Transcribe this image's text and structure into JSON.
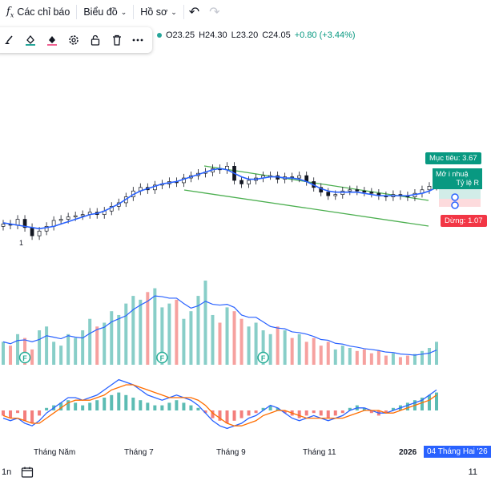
{
  "toolbar": {
    "indicators_icon": "fx-icon",
    "indicators_label": "Các chỉ báo",
    "chart_label": "Biểu đồ",
    "profile_label": "Hồ sơ"
  },
  "drawing_toolbar": {
    "tools": [
      "brush-icon",
      "fill-icon",
      "fill-alt-icon",
      "gear-icon",
      "lock-icon",
      "trash-icon",
      "more-icon"
    ]
  },
  "ohlc": {
    "open": "O23.25",
    "high": "H24.30",
    "low": "L23.20",
    "close": "C24.05",
    "change": "+0.80 (+3.44%)"
  },
  "position": {
    "target": "Mục tiêu: 3.67",
    "info_line1": "Mở",
    "info_line1b": "i nhuậ",
    "info_line2": "Tỷ lệ R",
    "stop": "Dừng: 1.07"
  },
  "markers": {
    "flag": "F",
    "left_marker": "1"
  },
  "time_axis": {
    "labels": [
      "Tháng Năm",
      "Tháng 7",
      "Tháng 9",
      "Tháng 11",
      "2026"
    ],
    "crosshair_date": "04 Tháng Hai '26"
  },
  "bottom": {
    "interval": "1n",
    "right_value": "11"
  },
  "colors": {
    "up": "#26a69a",
    "down": "#ef5350",
    "ma": "#2962ff",
    "channel": "#4caf50",
    "macd_signal": "#ff6d00"
  },
  "chart_data": {
    "type": "candlestick",
    "price_close_series": [
      20.2,
      20.1,
      20.6,
      19.9,
      19.2,
      19.6,
      20.0,
      20.5,
      20.6,
      20.8,
      20.9,
      21.0,
      21.2,
      21.0,
      21.3,
      21.7,
      22.0,
      22.5,
      23.0,
      23.3,
      23.1,
      23.5,
      23.6,
      23.8,
      23.7,
      24.1,
      24.3,
      24.5,
      24.6,
      24.9,
      24.8,
      25.1,
      23.9,
      23.6,
      23.9,
      24.1,
      24.3,
      24.3,
      24.0,
      24.2,
      24.1,
      24.3,
      23.8,
      23.3,
      22.9,
      22.6,
      22.7,
      23.0,
      23.1,
      23.0,
      22.9,
      22.8,
      22.6,
      22.5,
      22.7,
      22.6,
      22.5,
      22.8,
      23.1,
      23.4,
      24.05
    ],
    "volume_series": [
      30,
      25,
      40,
      35,
      20,
      45,
      50,
      30,
      25,
      40,
      35,
      45,
      60,
      50,
      55,
      70,
      65,
      80,
      90,
      85,
      95,
      100,
      75,
      80,
      85,
      60,
      70,
      90,
      110,
      65,
      55,
      75,
      70,
      60,
      50,
      55,
      45,
      40,
      50,
      45,
      35,
      40,
      30,
      35,
      25,
      30,
      20,
      25,
      22,
      18,
      20,
      15,
      18,
      12,
      15,
      10,
      12,
      14,
      18,
      22,
      30
    ],
    "ma_series": [
      20.3,
      20.2,
      20.1,
      20.0,
      19.9,
      19.8,
      19.9,
      20.0,
      20.2,
      20.4,
      20.6,
      20.8,
      21.0,
      21.1,
      21.3,
      21.6,
      21.9,
      22.3,
      22.7,
      23.0,
      23.2,
      23.4,
      23.6,
      23.7,
      23.8,
      24.0,
      24.2,
      24.4,
      24.6,
      24.8,
      24.9,
      24.8,
      24.5,
      24.2,
      24.0,
      24.0,
      24.1,
      24.2,
      24.2,
      24.1,
      24.1,
      24.0,
      23.8,
      23.5,
      23.2,
      23.0,
      22.9,
      22.9,
      22.9,
      22.9,
      22.8,
      22.7,
      22.6,
      22.6,
      22.6,
      22.6,
      22.6,
      22.7,
      22.8,
      23.0,
      23.3
    ],
    "macd_hist": [
      -2,
      -3,
      -1,
      -4,
      -5,
      -2,
      1,
      2,
      3,
      4,
      3,
      2,
      3,
      4,
      5,
      6,
      7,
      6,
      5,
      4,
      3,
      2,
      2,
      3,
      4,
      3,
      2,
      1,
      -1,
      -3,
      -4,
      -5,
      -4,
      -3,
      -2,
      -1,
      1,
      2,
      1,
      -1,
      -2,
      -3,
      -2,
      -1,
      -2,
      -3,
      -2,
      -1,
      1,
      2,
      1,
      -1,
      -2,
      -1,
      1,
      2,
      3,
      4,
      5,
      6,
      7
    ],
    "macd_line": [
      -3,
      -4,
      -3,
      -5,
      -6,
      -4,
      -1,
      1,
      3,
      5,
      5,
      4,
      5,
      6,
      8,
      10,
      12,
      11,
      10,
      8,
      6,
      5,
      4,
      5,
      6,
      5,
      4,
      2,
      -1,
      -4,
      -6,
      -7,
      -6,
      -5,
      -3,
      -2,
      0,
      2,
      1,
      -1,
      -3,
      -4,
      -3,
      -2,
      -3,
      -4,
      -3,
      -2,
      0,
      1,
      1,
      0,
      -1,
      -1,
      0,
      1,
      2,
      3,
      4,
      6,
      8
    ],
    "signal_line": [
      -2,
      -3,
      -3,
      -4,
      -5,
      -5,
      -3,
      -1,
      1,
      3,
      4,
      4,
      4,
      5,
      6,
      8,
      9,
      10,
      10,
      9,
      8,
      7,
      6,
      5,
      5,
      5,
      5,
      4,
      2,
      -1,
      -3,
      -5,
      -6,
      -6,
      -5,
      -4,
      -2,
      -1,
      0,
      0,
      -1,
      -2,
      -3,
      -3,
      -3,
      -3,
      -3,
      -3,
      -2,
      -1,
      0,
      0,
      0,
      -1,
      -1,
      0,
      1,
      2,
      3,
      4,
      6
    ],
    "flags_at_index": [
      3,
      22,
      36
    ]
  }
}
